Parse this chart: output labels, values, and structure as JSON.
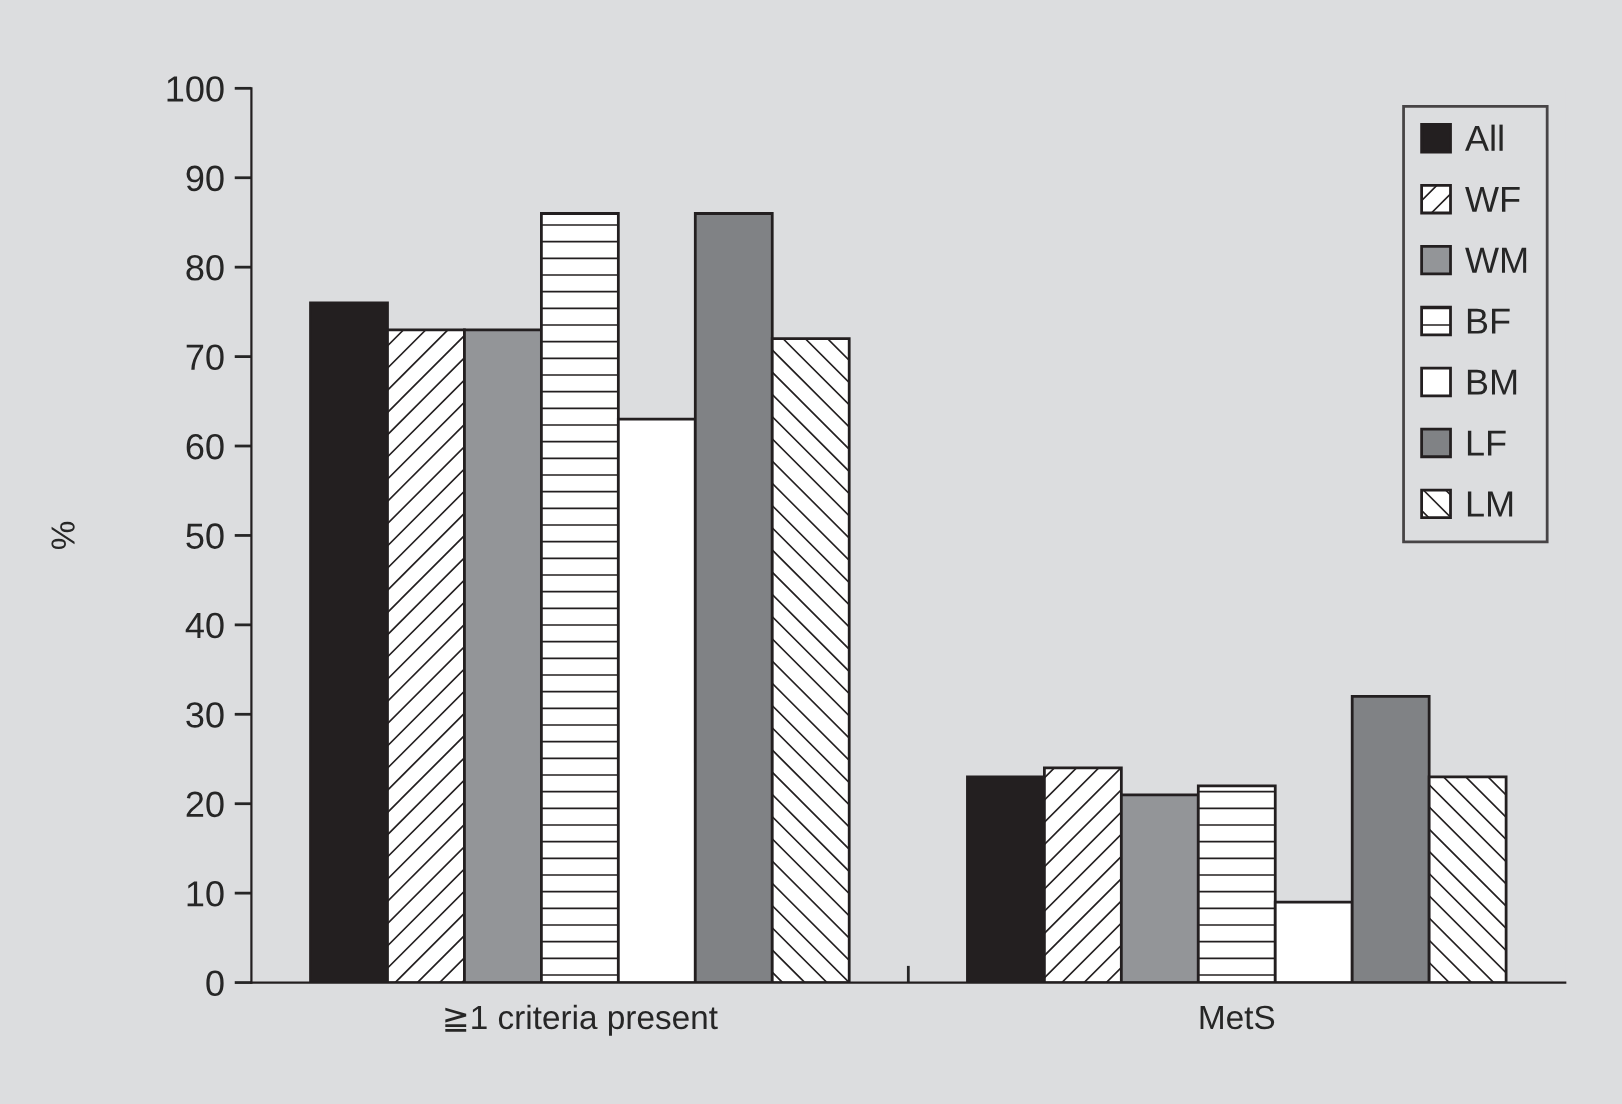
{
  "chart_data": {
    "type": "bar",
    "ylabel": "%",
    "categories": [
      "≧1 criteria present",
      "MetS"
    ],
    "series": [
      {
        "name": "All",
        "color": "#231f20",
        "values": [
          76,
          23
        ]
      },
      {
        "name": "WF",
        "color": "#ffffff",
        "values": [
          73,
          24
        ]
      },
      {
        "name": "WM",
        "color": "#939598",
        "values": [
          73,
          21
        ]
      },
      {
        "name": "BF",
        "color": "#ffffff",
        "values": [
          86,
          22
        ]
      },
      {
        "name": "BM",
        "color": "#ffffff",
        "values": [
          63,
          9
        ]
      },
      {
        "name": "LF",
        "color": "#808285",
        "values": [
          86,
          32
        ]
      },
      {
        "name": "LM",
        "color": "#ffffff",
        "values": [
          72,
          23
        ]
      }
    ],
    "ylim": [
      0,
      100
    ],
    "yticks": [
      0,
      10,
      20,
      30,
      40,
      50,
      60,
      70,
      80,
      90,
      100
    ],
    "grid": false,
    "legend": "top right"
  }
}
